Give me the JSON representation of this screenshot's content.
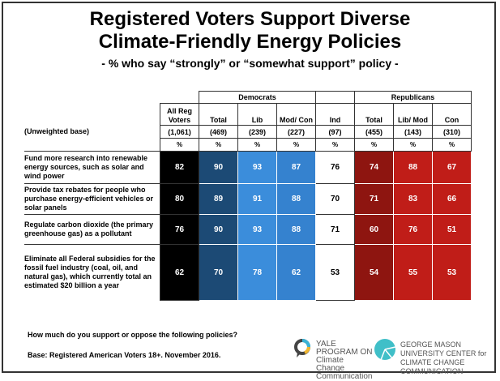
{
  "chart_data": {
    "type": "table",
    "title_line1": "Registered Voters Support Diverse",
    "title_line2": "Climate-Friendly Energy Policies",
    "subtitle": "- % who say “strongly” or “somewhat support” policy -",
    "groups": {
      "democrats": "Democrats",
      "republicans": "Republicans"
    },
    "base_label": "(Unweighted base)",
    "columns": [
      {
        "label": "All Reg Voters",
        "base": "(1,061)",
        "unit": "%",
        "color": "#000000",
        "text": "#ffffff"
      },
      {
        "label": "Total",
        "base": "(469)",
        "unit": "%",
        "color": "#1c4a75",
        "text": "#ffffff"
      },
      {
        "label": "Lib",
        "base": "(239)",
        "unit": "%",
        "color": "#3b8ddb",
        "text": "#ffffff"
      },
      {
        "label": "Mod/ Con",
        "base": "(227)",
        "unit": "%",
        "color": "#3582cf",
        "text": "#ffffff"
      },
      {
        "label": "Ind",
        "base": "(97)",
        "unit": "%",
        "color": "#ffffff",
        "text": "#000000"
      },
      {
        "label": "Total",
        "base": "(455)",
        "unit": "%",
        "color": "#8e1510",
        "text": "#ffffff"
      },
      {
        "label": "Lib/ Mod",
        "base": "(143)",
        "unit": "%",
        "color": "#c01d18",
        "text": "#ffffff"
      },
      {
        "label": "Con",
        "base": "(310)",
        "unit": "%",
        "color": "#c01d18",
        "text": "#ffffff"
      }
    ],
    "rows": [
      {
        "label": "Fund more research into renewable energy sources, such as solar and wind power",
        "values": [
          82,
          90,
          93,
          87,
          76,
          74,
          88,
          67
        ]
      },
      {
        "label": "Provide tax rebates for people who purchase energy-efficient vehicles or solar panels",
        "values": [
          80,
          89,
          91,
          88,
          70,
          71,
          83,
          66
        ]
      },
      {
        "label": "Regulate carbon dioxide (the primary greenhouse gas) as a pollutant",
        "values": [
          76,
          90,
          93,
          88,
          71,
          60,
          76,
          51
        ]
      },
      {
        "label": "Eliminate all Federal subsidies for the fossil fuel industry (coal, oil, and natural gas), which currently total an estimated $20 billion a year",
        "values": [
          62,
          70,
          78,
          62,
          53,
          54,
          55,
          53
        ]
      }
    ]
  },
  "footer": {
    "question": "How much do you support or oppose the following policies?",
    "base": "Base: Registered American Voters 18+. November 2016."
  },
  "logos": {
    "yale": "YALE PROGRAM ON Climate Change Communication",
    "gmu": "GEORGE MASON UNIVERSITY CENTER for CLIMATE CHANGE COMMUNICATION"
  }
}
